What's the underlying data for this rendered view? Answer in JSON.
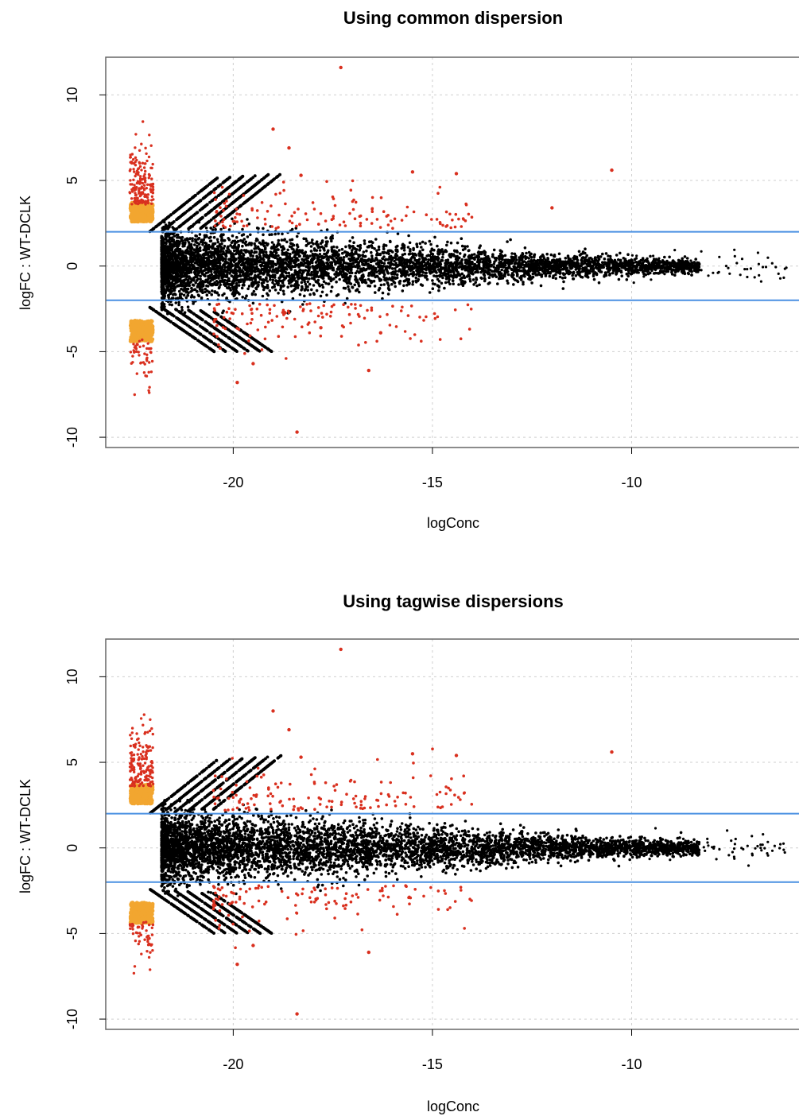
{
  "chart_data": [
    {
      "type": "scatter",
      "title": "Using common dispersion",
      "xlabel": "logConc",
      "ylabel": "logFC : WT-DCLK",
      "xlim": [
        -23.2,
        -5.8
      ],
      "ylim": [
        -10.6,
        12.2
      ],
      "xticks": [
        -20,
        -15,
        -10
      ],
      "yticks": [
        -10,
        -5,
        0,
        5,
        10
      ],
      "grid": true,
      "hlines": [
        2,
        -2
      ],
      "colors": {
        "nonsig": "#000000",
        "de": "#d9301f",
        "zero_count": "#f2a630",
        "hline": "#4a90e2",
        "grid": "#cfcfcf"
      },
      "series": [
        {
          "color": "nonsig",
          "description_points": "dense cloud; spread narrows with logConc"
        },
        {
          "color": "de",
          "points": [
            [
              -17.3,
              11.6
            ],
            [
              -19.0,
              8.0
            ],
            [
              -18.6,
              6.9
            ],
            [
              -10.5,
              5.6
            ],
            [
              -15.5,
              5.5
            ],
            [
              -14.4,
              5.4
            ],
            [
              -18.3,
              5.3
            ],
            [
              -12.0,
              3.4
            ],
            [
              -16.6,
              -6.1
            ],
            [
              -18.4,
              -9.7
            ],
            [
              -19.5,
              -5.7
            ],
            [
              -19.9,
              -6.8
            ],
            [
              -17.8,
              -3.6
            ],
            [
              -16.3,
              -3.9
            ]
          ]
        },
        {
          "color": "zero_count",
          "x": -22.3,
          "y_upper": [
            2.6,
            3.7
          ],
          "y_lower": [
            -4.4,
            -3.2
          ]
        }
      ]
    },
    {
      "type": "scatter",
      "title": "Using tagwise dispersions",
      "xlabel": "logConc",
      "ylabel": "logFC : WT-DCLK",
      "xlim": [
        -23.2,
        -5.8
      ],
      "ylim": [
        -10.6,
        12.2
      ],
      "xticks": [
        -20,
        -15,
        -10
      ],
      "yticks": [
        -10,
        -5,
        0,
        5,
        10
      ],
      "grid": true,
      "hlines": [
        2,
        -2
      ],
      "colors": {
        "nonsig": "#000000",
        "de": "#d9301f",
        "zero_count": "#f2a630",
        "hline": "#4a90e2",
        "grid": "#cfcfcf"
      },
      "series": [
        {
          "color": "nonsig",
          "description_points": "dense cloud; spread narrows with logConc"
        },
        {
          "color": "de",
          "points": [
            [
              -17.3,
              11.6
            ],
            [
              -19.0,
              8.0
            ],
            [
              -18.6,
              6.9
            ],
            [
              -10.5,
              5.6
            ],
            [
              -15.5,
              5.5
            ],
            [
              -14.4,
              5.4
            ],
            [
              -18.3,
              5.3
            ],
            [
              -16.6,
              -6.1
            ],
            [
              -18.4,
              -9.7
            ],
            [
              -19.5,
              -5.7
            ],
            [
              -19.9,
              -6.8
            ]
          ]
        },
        {
          "color": "zero_count",
          "x": -22.3,
          "y_upper": [
            2.6,
            3.7
          ],
          "y_lower": [
            -4.4,
            -3.2
          ]
        }
      ]
    }
  ]
}
